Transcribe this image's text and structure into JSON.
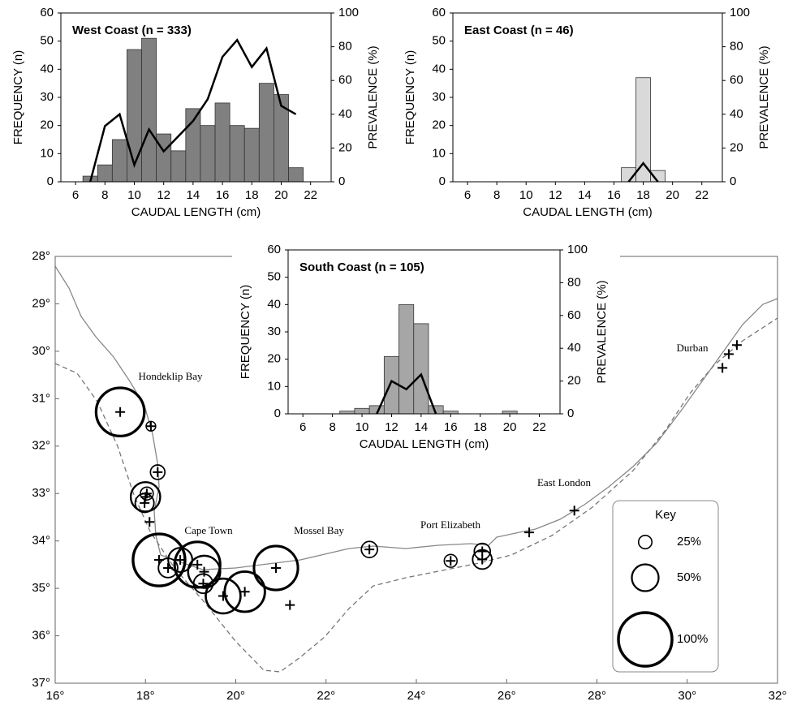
{
  "chart_data": [
    {
      "type": "histogram",
      "title": "West Coast (n = 333)",
      "xlabel": "CAUDAL LENGTH (cm)",
      "ylabel": "FREQUENCY (n)",
      "y2label": "PREVALENCE (%)",
      "bins": [
        6.5,
        7.5,
        8.5,
        9.5,
        10.5,
        11.5,
        12.5,
        13.5,
        14.5,
        15.5,
        16.5,
        17.5,
        18.5,
        19.5,
        20.5,
        21.5
      ],
      "values": [
        2,
        6,
        15,
        47,
        51,
        17,
        11,
        26,
        20,
        28,
        20,
        19,
        35,
        31,
        5
      ],
      "color": "#808080",
      "series": [
        {
          "x": [
            7,
            8,
            9,
            10,
            11,
            12,
            13,
            14,
            15,
            16,
            17,
            18,
            19,
            20,
            21
          ],
          "values": [
            0,
            33,
            40,
            10,
            31,
            18,
            27,
            36,
            49,
            74,
            84,
            68,
            79,
            45,
            40
          ],
          "axis": "y2",
          "color": "#000000"
        }
      ],
      "xlim": [
        5,
        23.4
      ],
      "xticks": [
        6,
        8,
        10,
        12,
        14,
        16,
        18,
        20,
        22
      ],
      "ylim": [
        0,
        60
      ],
      "yticks": [
        0,
        10,
        20,
        30,
        40,
        50,
        60
      ],
      "y2lim": [
        0,
        100
      ],
      "y2ticks": [
        0,
        20,
        40,
        60,
        80,
        100
      ]
    },
    {
      "type": "histogram",
      "title": "East Coast (n = 46)",
      "xlabel": "CAUDAL LENGTH (cm)",
      "ylabel": "FREQUENCY (n)",
      "y2label": "PREVALENCE (%)",
      "bins": [
        16.5,
        17.5,
        18.5,
        19.5
      ],
      "values": [
        5,
        37,
        4
      ],
      "color": "#d9d9d9",
      "series": [
        {
          "x": [
            17,
            18,
            19
          ],
          "values": [
            0,
            11,
            0
          ],
          "axis": "y2",
          "color": "#000000"
        }
      ],
      "xlim": [
        5,
        23.4
      ],
      "xticks": [
        6,
        8,
        10,
        12,
        14,
        16,
        18,
        20,
        22
      ],
      "ylim": [
        0,
        60
      ],
      "yticks": [
        0,
        10,
        20,
        30,
        40,
        50,
        60
      ],
      "y2lim": [
        0,
        100
      ],
      "y2ticks": [
        0,
        20,
        40,
        60,
        80,
        100
      ]
    },
    {
      "type": "histogram",
      "title": "South Coast (n = 105)",
      "xlabel": "CAUDAL LENGTH (cm)",
      "ylabel": "FREQUENCY (n)",
      "y2label": "PREVALENCE (%)",
      "bins": [
        8.5,
        9.5,
        10.5,
        11.5,
        12.5,
        13.5,
        14.5,
        15.5,
        16.5,
        17.5,
        18.5,
        19.5,
        20.5
      ],
      "values": [
        1,
        2,
        3,
        21,
        40,
        33,
        3,
        1,
        0,
        0,
        0,
        1
      ],
      "color": "#a6a6a6",
      "series": [
        {
          "x": [
            11,
            12,
            13,
            14,
            15
          ],
          "values": [
            0,
            20,
            15,
            24,
            0
          ],
          "axis": "y2",
          "color": "#000000"
        }
      ],
      "xlim": [
        5,
        23.4
      ],
      "xticks": [
        6,
        8,
        10,
        12,
        14,
        16,
        18,
        20,
        22
      ],
      "ylim": [
        0,
        60
      ],
      "yticks": [
        0,
        10,
        20,
        30,
        40,
        50,
        60
      ],
      "y2lim": [
        0,
        100
      ],
      "y2ticks": [
        0,
        20,
        40,
        60,
        80,
        100
      ]
    },
    {
      "type": "bubble_map",
      "y_reversed": true,
      "xlim": [
        16,
        32
      ],
      "xticks": [
        {
          "value": 16,
          "label": "16°"
        },
        {
          "value": 18,
          "label": "18°"
        },
        {
          "value": 20,
          "label": "20°"
        },
        {
          "value": 22,
          "label": "22°"
        },
        {
          "value": 24,
          "label": "24°"
        },
        {
          "value": 26,
          "label": "26°"
        },
        {
          "value": 28,
          "label": "28°"
        },
        {
          "value": 30,
          "label": "30°"
        },
        {
          "value": 32,
          "label": "32°"
        }
      ],
      "ylim": [
        28,
        37
      ],
      "yticks": [
        {
          "value": 28,
          "label": "28°"
        },
        {
          "value": 29,
          "label": "29°"
        },
        {
          "value": 30,
          "label": "30°"
        },
        {
          "value": 31,
          "label": "31°"
        },
        {
          "value": 32,
          "label": "32°"
        },
        {
          "value": 33,
          "label": "33°"
        },
        {
          "value": 34,
          "label": "34°"
        },
        {
          "value": 35,
          "label": "35°"
        },
        {
          "value": 36,
          "label": "36°"
        },
        {
          "value": 37,
          "label": "37°"
        }
      ],
      "places": [
        "Hondeklip Bay",
        "Cape Town",
        "Mossel Bay",
        "Port Elizabeth",
        "East London",
        "Durban"
      ],
      "sites": {
        "lon": [
          17.44,
          18.12,
          18.27,
          18.0,
          17.98,
          18.03,
          18.09,
          18.3,
          18.5,
          18.77,
          19.15,
          19.3,
          19.28,
          19.72,
          20.2,
          20.89,
          21.2,
          22.96,
          24.76,
          25.46,
          25.46,
          26.5,
          27.5,
          30.78,
          30.92,
          31.1
        ],
        "lat": [
          31.28,
          31.58,
          32.55,
          33.07,
          33.2,
          33.0,
          33.6,
          34.4,
          34.57,
          34.4,
          34.5,
          34.65,
          34.9,
          35.16,
          35.07,
          34.57,
          35.35,
          34.18,
          34.42,
          34.22,
          34.39,
          33.82,
          33.36,
          30.35,
          30.06,
          29.87
        ],
        "prevalence": [
          90,
          18,
          27,
          55,
          35,
          24,
          null,
          97,
          36,
          45,
          85,
          60,
          36,
          65,
          75,
          82,
          null,
          30,
          24,
          30,
          36,
          null,
          null,
          null,
          null,
          null
        ]
      },
      "key": {
        "title": "Key",
        "values": [
          25,
          50,
          100
        ],
        "value_labels": [
          "25%",
          "50%",
          "100%"
        ]
      }
    }
  ]
}
